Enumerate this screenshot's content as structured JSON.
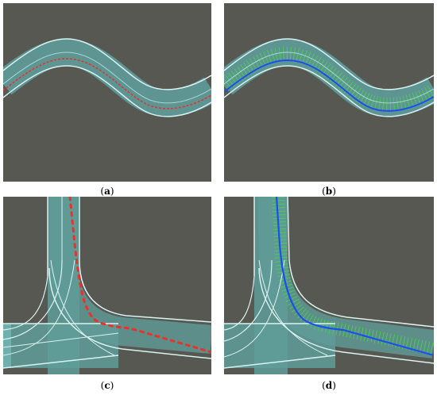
{
  "panels": [
    {
      "id": "a",
      "caption_open": "(",
      "caption_letter": "a",
      "caption_close": ")"
    },
    {
      "id": "b",
      "caption_open": "(",
      "caption_letter": "b",
      "caption_close": ")"
    },
    {
      "id": "c",
      "caption_open": "(",
      "caption_letter": "c",
      "caption_close": ")"
    },
    {
      "id": "d",
      "caption_open": "(",
      "caption_letter": "d",
      "caption_close": ")"
    }
  ],
  "colors": {
    "background": "#585852",
    "road_fill": "#5f9c99",
    "road_edge": "#d9f3f2",
    "path_red": "#e8322a",
    "path_blue": "#1b4ff0",
    "hatch_green": "#49d04f"
  }
}
